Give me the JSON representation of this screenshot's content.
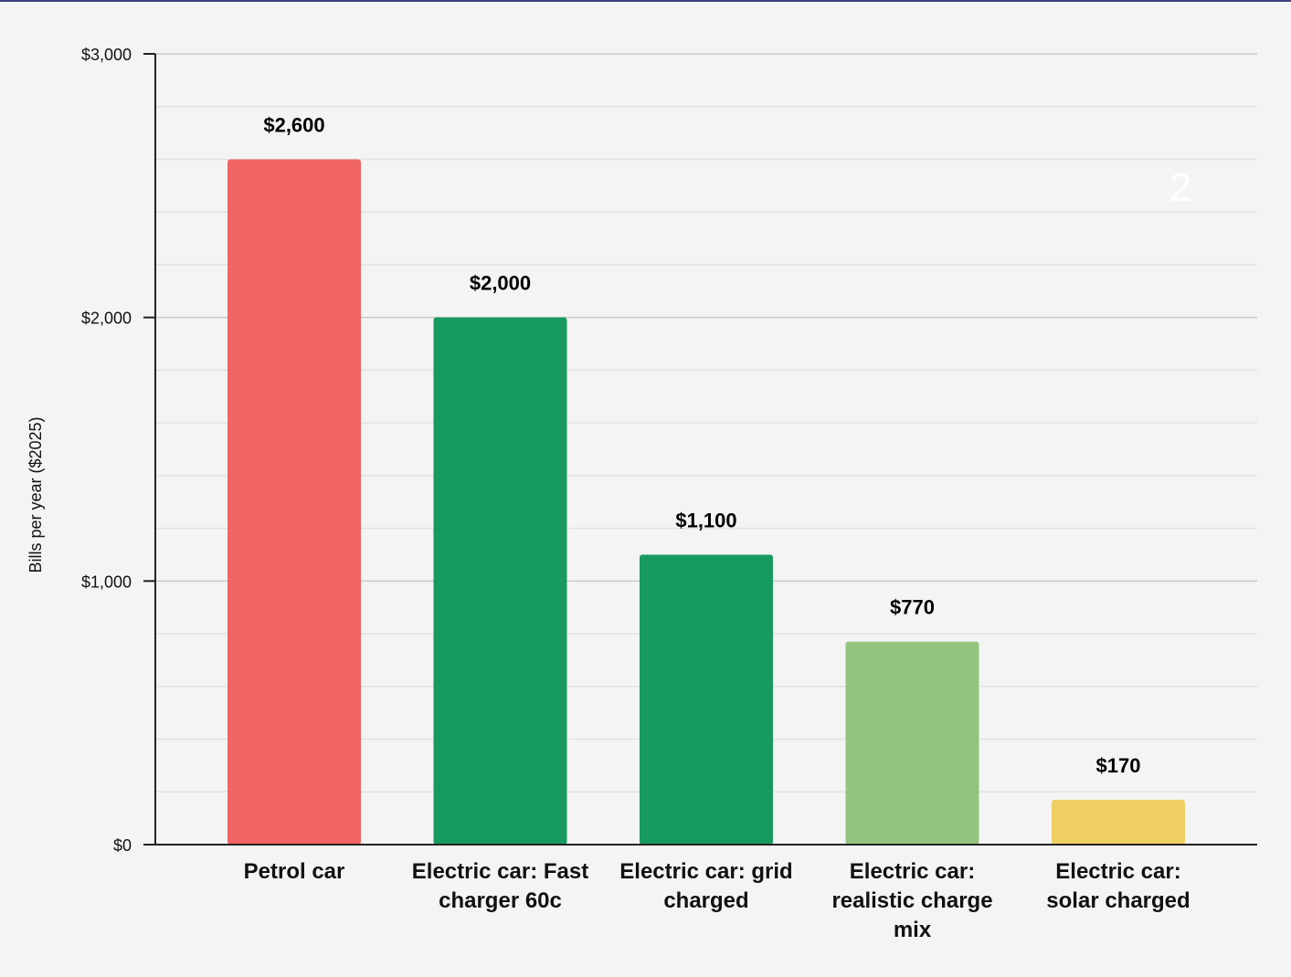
{
  "chart_data": {
    "type": "bar",
    "title": "",
    "xlabel": "",
    "ylabel": "Bills per year ($2025)",
    "ylim": [
      0,
      3000
    ],
    "yticks": [
      {
        "value": 0,
        "label": "$0"
      },
      {
        "value": 1000,
        "label": "$1,000"
      },
      {
        "value": 2000,
        "label": "$2,000"
      },
      {
        "value": 3000,
        "label": "$3,000"
      }
    ],
    "minor_gridlines": true,
    "categories": [
      {
        "lines": [
          "Petrol car"
        ]
      },
      {
        "lines": [
          "Electric car: Fast",
          "charger 60c"
        ]
      },
      {
        "lines": [
          "Electric car: grid",
          "charged"
        ]
      },
      {
        "lines": [
          "Electric car:",
          "realistic charge",
          "mix"
        ]
      },
      {
        "lines": [
          "Electric car:",
          "solar charged"
        ]
      }
    ],
    "values": [
      2600,
      2000,
      1100,
      770,
      170
    ],
    "value_labels": [
      "$2,600",
      "$2,000",
      "$1,100",
      "$770",
      "$170"
    ],
    "colors": [
      "#f06464",
      "#179a5e",
      "#179a5e",
      "#93c47d",
      "#f0cf63"
    ],
    "annotation": "2"
  }
}
